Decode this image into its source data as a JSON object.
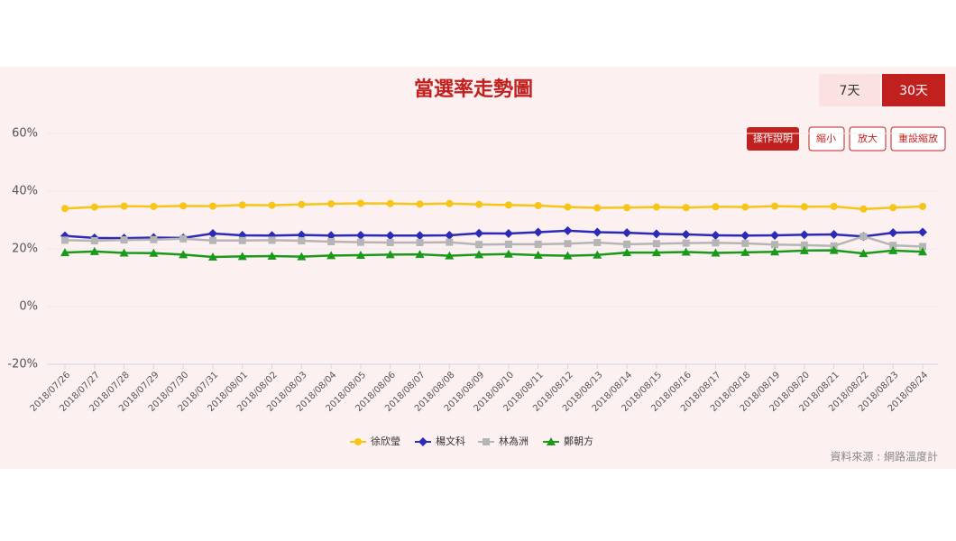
{
  "chart_data": {
    "type": "line",
    "title": "當選率走勢圖",
    "buttons": [
      "7天",
      "30天"
    ],
    "tools": [
      "操作說明",
      "縮小",
      "放大",
      "重設縮放"
    ],
    "source": "資料來源 : 網路溫度計",
    "categories": [
      "2018/07/26",
      "2018/07/27",
      "2018/07/28",
      "2018/07/29",
      "2018/07/30",
      "2018/07/31",
      "2018/08/01",
      "2018/08/02",
      "2018/08/03",
      "2018/08/04",
      "2018/08/05",
      "2018/08/06",
      "2018/08/07",
      "2018/08/08",
      "2018/08/09",
      "2018/08/10",
      "2018/08/11",
      "2018/08/12",
      "2018/08/13",
      "2018/08/14",
      "2018/08/15",
      "2018/08/16",
      "2018/08/17",
      "2018/08/18",
      "2018/08/19",
      "2018/08/20",
      "2018/08/21",
      "2018/08/22",
      "2018/08/23",
      "2018/08/24"
    ],
    "series": [
      {
        "name": "徐欣瑩",
        "color": "#f5c518",
        "marker": "circle",
        "values": [
          34.0,
          34.5,
          34.8,
          34.7,
          34.9,
          34.8,
          35.2,
          35.1,
          35.4,
          35.6,
          35.8,
          35.7,
          35.5,
          35.7,
          35.4,
          35.2,
          35.0,
          34.5,
          34.2,
          34.3,
          34.5,
          34.3,
          34.6,
          34.5,
          34.8,
          34.6,
          34.7,
          33.8,
          34.3,
          34.7
        ]
      },
      {
        "name": "楊文科",
        "color": "#2b2bb8",
        "marker": "diamond",
        "values": [
          24.5,
          23.8,
          23.7,
          23.9,
          23.8,
          25.3,
          24.7,
          24.6,
          24.8,
          24.6,
          24.7,
          24.6,
          24.6,
          24.7,
          25.4,
          25.3,
          25.8,
          26.3,
          25.8,
          25.6,
          25.2,
          25.0,
          24.7,
          24.6,
          24.7,
          24.9,
          25.0,
          24.3,
          25.6,
          25.8
        ]
      },
      {
        "name": "林為洲",
        "color": "#b5b5b5",
        "marker": "square",
        "values": [
          23.0,
          22.8,
          23.1,
          23.2,
          23.5,
          22.9,
          22.9,
          23.0,
          22.8,
          22.5,
          22.3,
          22.2,
          22.2,
          22.3,
          21.5,
          21.6,
          21.6,
          21.8,
          22.2,
          21.6,
          21.8,
          22.0,
          22.1,
          21.9,
          21.5,
          21.3,
          21.0,
          24.3,
          21.2,
          20.8
        ]
      },
      {
        "name": "鄭朝方",
        "color": "#1a9a1a",
        "marker": "triangle",
        "values": [
          18.7,
          19.1,
          18.6,
          18.5,
          18.0,
          17.2,
          17.4,
          17.5,
          17.3,
          17.7,
          17.8,
          18.0,
          18.1,
          17.6,
          18.0,
          18.2,
          17.8,
          17.6,
          17.9,
          18.7,
          18.7,
          18.9,
          18.6,
          18.8,
          19.0,
          19.4,
          19.5,
          18.4,
          19.4,
          19.0
        ]
      }
    ],
    "ylim": [
      -20,
      60
    ],
    "yticks": [
      {
        "value": -20,
        "label": "-20%"
      },
      {
        "value": 0,
        "label": "0%"
      },
      {
        "value": 20,
        "label": "20%"
      },
      {
        "value": 40,
        "label": "40%"
      },
      {
        "value": 60,
        "label": "60%"
      }
    ],
    "grid": true
  }
}
